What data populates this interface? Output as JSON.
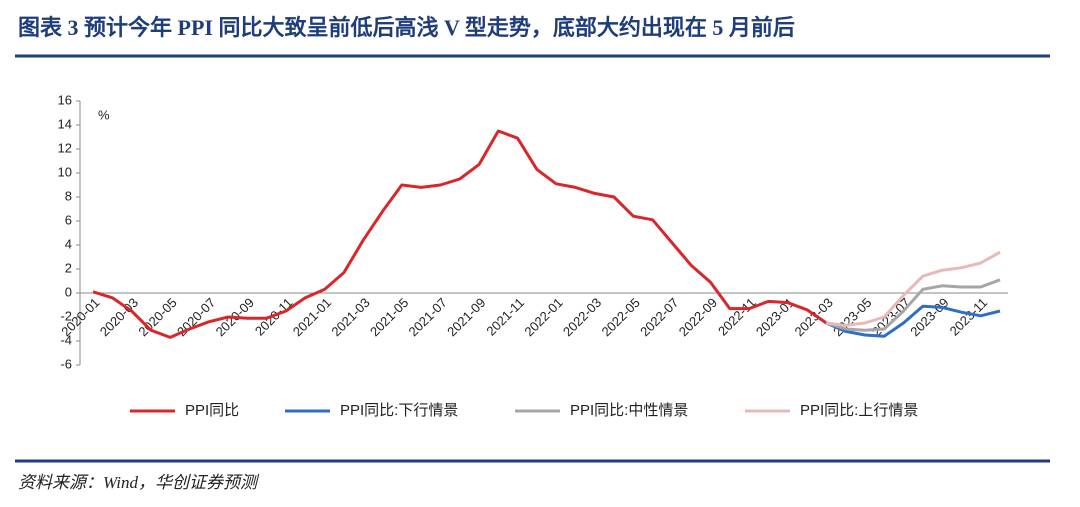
{
  "chart_data": {
    "type": "line",
    "title": "图表 3   预计今年 PPI 同比大致呈前低后高浅 V 型走势，底部大约出现在 5 月前后",
    "y_unit": "%",
    "source": "资料来源：Wind，华创证券预测",
    "categories": [
      "2020-01",
      null,
      "2020-03",
      null,
      "2020-05",
      null,
      "2020-07",
      null,
      "2020-09",
      null,
      "2020-11",
      null,
      "2021-01",
      null,
      "2021-03",
      null,
      "2021-05",
      null,
      "2021-07",
      null,
      "2021-09",
      null,
      "2021-11",
      null,
      "2022-01",
      null,
      "2022-03",
      null,
      "2022-05",
      null,
      "2022-07",
      null,
      "2022-09",
      null,
      "2022-11",
      null,
      "2023-01",
      null,
      "2023-03",
      null,
      "2023-05",
      null,
      "2023-07",
      null,
      "2023-09",
      null,
      "2023-11",
      null
    ],
    "series": [
      {
        "name": "PPI同比",
        "color": "#d9262b",
        "values": [
          0.1,
          -0.4,
          -1.5,
          -3.1,
          -3.7,
          -3.0,
          -2.4,
          -2.0,
          -2.1,
          -2.1,
          -1.5,
          -0.4,
          0.3,
          1.7,
          4.4,
          6.8,
          9.0,
          8.8,
          9.0,
          9.5,
          10.7,
          13.5,
          12.9,
          10.3,
          9.1,
          8.8,
          8.3,
          8.0,
          6.4,
          6.1,
          4.2,
          2.3,
          0.9,
          -1.3,
          -1.3,
          -0.7,
          -0.8,
          -1.4,
          -2.5,
          null,
          null,
          null,
          null,
          null,
          null,
          null,
          null,
          null
        ]
      },
      {
        "name": "PPI同比:下行情景",
        "color": "#2e6fc4",
        "values": [
          null,
          null,
          null,
          null,
          null,
          null,
          null,
          null,
          null,
          null,
          null,
          null,
          null,
          null,
          null,
          null,
          null,
          null,
          null,
          null,
          null,
          null,
          null,
          null,
          null,
          null,
          null,
          null,
          null,
          null,
          null,
          null,
          null,
          null,
          null,
          null,
          null,
          null,
          -2.5,
          -3.2,
          -3.5,
          -3.6,
          -2.5,
          -1.1,
          -1.2,
          -1.6,
          -1.9,
          -1.5
        ]
      },
      {
        "name": "PPI同比:中性情景",
        "color": "#a6a6a6",
        "values": [
          null,
          null,
          null,
          null,
          null,
          null,
          null,
          null,
          null,
          null,
          null,
          null,
          null,
          null,
          null,
          null,
          null,
          null,
          null,
          null,
          null,
          null,
          null,
          null,
          null,
          null,
          null,
          null,
          null,
          null,
          null,
          null,
          null,
          null,
          null,
          null,
          null,
          null,
          -2.5,
          -3.0,
          -3.1,
          -3.0,
          -1.5,
          0.3,
          0.6,
          0.5,
          0.5,
          1.1
        ]
      },
      {
        "name": "PPI同比:上行情景",
        "color": "#e8b9b9",
        "values": [
          null,
          null,
          null,
          null,
          null,
          null,
          null,
          null,
          null,
          null,
          null,
          null,
          null,
          null,
          null,
          null,
          null,
          null,
          null,
          null,
          null,
          null,
          null,
          null,
          null,
          null,
          null,
          null,
          null,
          null,
          null,
          null,
          null,
          null,
          null,
          null,
          null,
          null,
          -2.5,
          -2.7,
          -2.5,
          -2.0,
          -0.2,
          1.4,
          1.9,
          2.1,
          2.5,
          3.4
        ]
      }
    ],
    "ylim": [
      -6,
      16
    ],
    "yticks": [
      -6,
      -4,
      -2,
      0,
      2,
      4,
      6,
      8,
      10,
      12,
      14,
      16
    ],
    "grid": false,
    "legend": "bottom"
  }
}
